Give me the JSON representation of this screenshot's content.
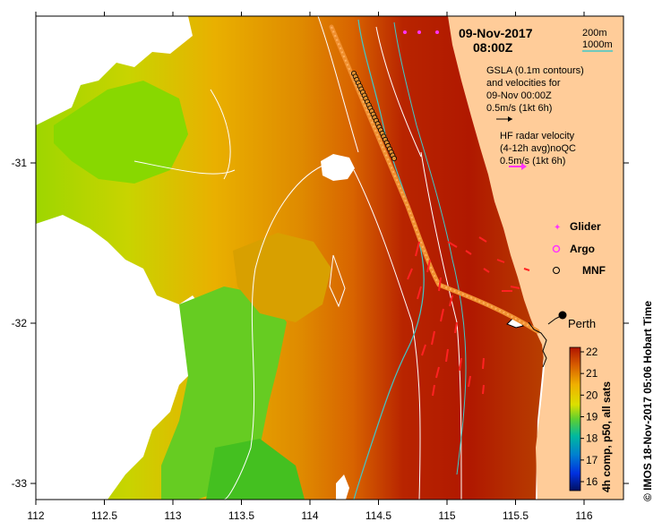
{
  "map": {
    "date_label": "09-Nov-2017",
    "time_label": "08:00Z",
    "x_ticks": [
      "112",
      "112.5",
      "113",
      "113.5",
      "114",
      "114.5",
      "115",
      "115.5",
      "116"
    ],
    "y_ticks": [
      "-31",
      "-32",
      "-33"
    ],
    "isobath_legend": {
      "shallow": "200m",
      "deep": "1000m",
      "deep_color": "#40c8c8"
    },
    "gsla_text": [
      "GSLA (0.1m contours)",
      "and velocities for",
      "09-Nov 00:00Z",
      "0.5m/s (1kt 6h)"
    ],
    "hf_text": [
      "HF radar velocity",
      "(4-12h avg)noQC",
      "0.5m/s (1kt 6h)"
    ],
    "hf_arrow_color": "#ff33ff",
    "markers": {
      "glider": {
        "label": "Glider",
        "color": "#ff33ff"
      },
      "argo": {
        "label": "Argo",
        "color": "#ff33ff"
      },
      "mnf": {
        "label": "MNF",
        "color": "#000000"
      }
    },
    "city": "Perth",
    "colorbar": {
      "label": "4h comp, p50, all sats",
      "ticks": [
        "22",
        "21",
        "20",
        "19",
        "18",
        "17",
        "16"
      ],
      "colors": [
        "#cc2200",
        "#e07000",
        "#f2c000",
        "#7fe000",
        "#00b7a0",
        "#0040ff",
        "#001080"
      ]
    },
    "credit": "© IMOS 18-Nov-2017 05:06 Hobart Time",
    "land_color": "#ffcc99",
    "no_data_color": "#ffffff"
  }
}
